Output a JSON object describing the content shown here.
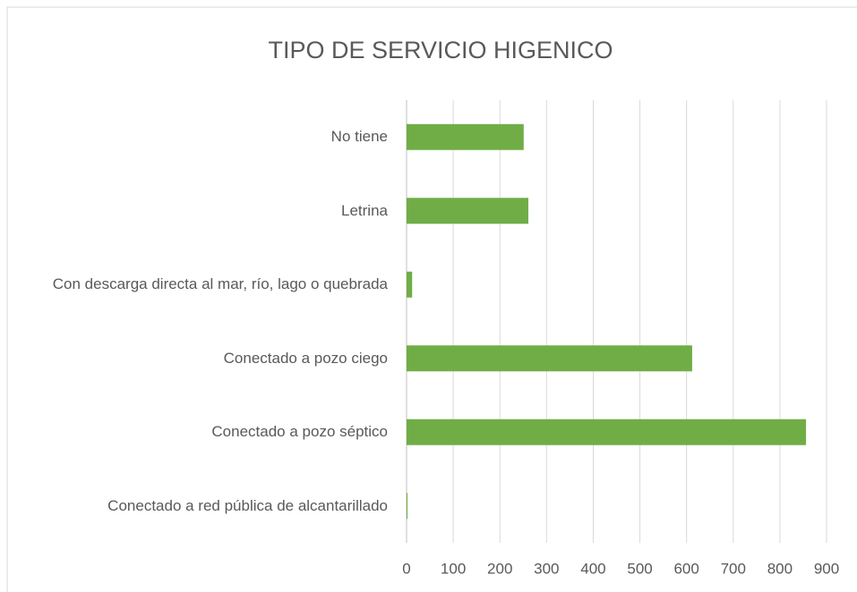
{
  "chart_data": {
    "type": "barh",
    "title": "TIPO DE SERVICIO HIGENICO",
    "categories": [
      "No tiene",
      "Letrina",
      "Con descarga directa al mar, río, lago o quebrada",
      "Conectado a pozo ciego",
      "Conectado a pozo séptico",
      "Conectado a red pública de alcantarillado"
    ],
    "values": [
      251,
      261,
      12,
      612,
      856,
      2
    ],
    "color": "#70ad47",
    "xlim": [
      0,
      900
    ],
    "xticks": [
      0,
      100,
      200,
      300,
      400,
      500,
      600,
      700,
      800,
      900
    ],
    "grid": true
  }
}
